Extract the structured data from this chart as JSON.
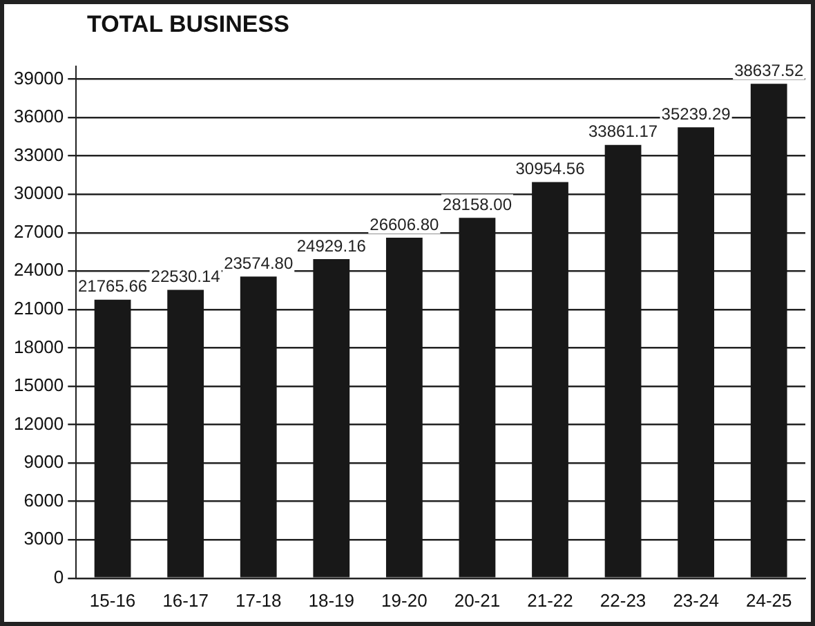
{
  "chart_data": {
    "type": "bar",
    "title": "TOTAL BUSINESS",
    "categories": [
      "15-16",
      "16-17",
      "17-18",
      "18-19",
      "19-20",
      "20-21",
      "21-22",
      "22-23",
      "23-24",
      "24-25"
    ],
    "values": [
      21765.66,
      22530.14,
      23574.8,
      24929.16,
      26606.8,
      28158.0,
      30954.56,
      33861.17,
      35239.29,
      38637.52
    ],
    "value_labels": [
      "21765.66",
      "22530.14",
      "23574.80",
      "24929.16",
      "26606.80",
      "28158.00",
      "30954.56",
      "33861.17",
      "35239.29",
      "38637.52"
    ],
    "color": "#181818",
    "ylim": [
      0,
      40000
    ],
    "yticks": [
      0,
      3000,
      6000,
      9000,
      12000,
      15000,
      18000,
      21000,
      24000,
      27000,
      30000,
      33000,
      36000,
      39000
    ],
    "grid": "y",
    "legend": false
  }
}
